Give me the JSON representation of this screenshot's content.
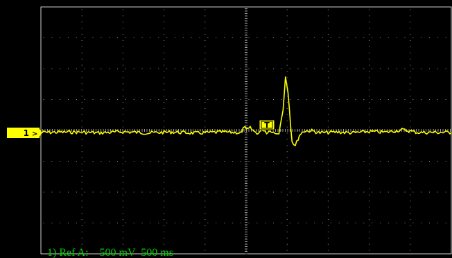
{
  "channel": {
    "number": "1",
    "color": "#ffff00"
  },
  "trigger": {
    "label": "T"
  },
  "status": {
    "text": "1) Ref A:    500 mV  500 ms",
    "color": "#00d000"
  },
  "colors": {
    "background": "#000000",
    "grid": "#c8c8c8",
    "trace": "#ffff00"
  },
  "chart_data": {
    "type": "line",
    "title": "",
    "xlabel": "",
    "ylabel": "",
    "grid": true,
    "x_divisions": 10,
    "y_divisions": 8,
    "units": {
      "x": "ms/div",
      "y": "mV/div"
    },
    "x_scale": 500,
    "y_scale": 500,
    "xlim": [
      -2500,
      2500
    ],
    "ylim": [
      -2000,
      2000
    ],
    "series": [
      {
        "values": [
          [
            -2500,
            0
          ],
          [
            -2100,
            10
          ],
          [
            -1800,
            -10
          ],
          [
            -1500,
            15
          ],
          [
            -1200,
            -10
          ],
          [
            -900,
            10
          ],
          [
            -600,
            -15
          ],
          [
            -300,
            10
          ],
          [
            -50,
            -5
          ],
          [
            -25,
            150
          ],
          [
            0,
            50
          ],
          [
            50,
            100
          ],
          [
            100,
            20
          ],
          [
            150,
            -20
          ],
          [
            200,
            80
          ],
          [
            250,
            0
          ],
          [
            300,
            50
          ],
          [
            350,
            -20
          ],
          [
            400,
            0
          ],
          [
            450,
            500
          ],
          [
            480,
            1250
          ],
          [
            510,
            900
          ],
          [
            560,
            -200
          ],
          [
            600,
            -300
          ],
          [
            650,
            -60
          ],
          [
            700,
            30
          ],
          [
            800,
            40
          ],
          [
            900,
            -10
          ],
          [
            1100,
            10
          ],
          [
            1300,
            -10
          ],
          [
            1500,
            20
          ],
          [
            1700,
            5
          ],
          [
            1900,
            60
          ],
          [
            2100,
            0
          ],
          [
            2500,
            0
          ]
        ]
      }
    ]
  }
}
